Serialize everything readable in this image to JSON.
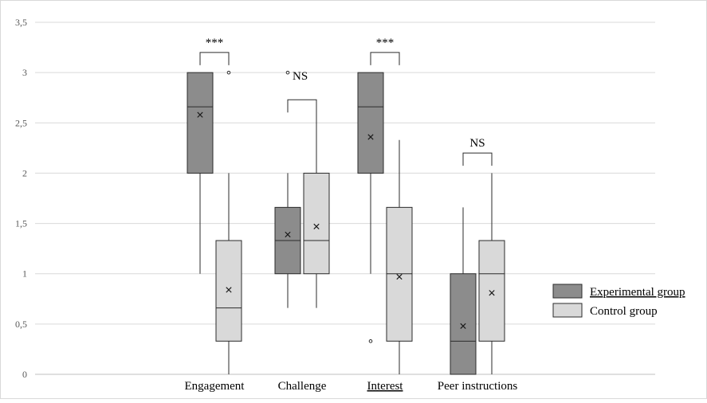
{
  "chart_data": {
    "type": "box",
    "ylim": [
      0,
      3.5
    ],
    "yticks": [
      "0",
      "0,5",
      "1",
      "1,5",
      "2",
      "2,5",
      "3",
      "3,5"
    ],
    "grid": true,
    "legend_position": "right",
    "categories": [
      "Engagement",
      "Challenge",
      "Interest",
      "Peer instructions"
    ],
    "series": [
      {
        "name": "Experimental group",
        "color": "#8c8c8c",
        "boxes": [
          {
            "min": 1.0,
            "q1": 2.0,
            "median": 2.66,
            "q3": 3.0,
            "max": 3.0,
            "mean": 2.58,
            "outliers": []
          },
          {
            "min": 0.66,
            "q1": 1.0,
            "median": 1.33,
            "q3": 1.66,
            "max": 2.0,
            "mean": 1.39,
            "outliers": [
              3.0
            ]
          },
          {
            "min": 1.0,
            "q1": 2.0,
            "median": 2.66,
            "q3": 3.0,
            "max": 3.0,
            "mean": 2.36,
            "outliers": [
              0.33
            ]
          },
          {
            "min": 0.0,
            "q1": 0.0,
            "median": 0.33,
            "q3": 1.0,
            "max": 1.66,
            "mean": 0.48,
            "outliers": []
          }
        ]
      },
      {
        "name": "Control group",
        "color": "#d9d9d9",
        "boxes": [
          {
            "min": 0.0,
            "q1": 0.33,
            "median": 0.66,
            "q3": 1.33,
            "max": 2.0,
            "mean": 0.84,
            "outliers": [
              3.0
            ]
          },
          {
            "min": 0.66,
            "q1": 1.0,
            "median": 1.33,
            "q3": 2.0,
            "max": 2.66,
            "mean": 1.47,
            "outliers": []
          },
          {
            "min": 0.0,
            "q1": 0.33,
            "median": 1.0,
            "q3": 1.66,
            "max": 2.33,
            "mean": 0.97,
            "outliers": []
          },
          {
            "min": 0.0,
            "q1": 0.33,
            "median": 1.0,
            "q3": 1.33,
            "max": 2.0,
            "mean": 0.81,
            "outliers": []
          }
        ]
      }
    ],
    "annotations": [
      {
        "category": 0,
        "text": "***",
        "y": 3.2
      },
      {
        "category": 1,
        "text": "NS",
        "y": 2.73
      },
      {
        "category": 2,
        "text": "***",
        "y": 3.2
      },
      {
        "category": 3,
        "text": "NS",
        "y": 2.2
      }
    ]
  }
}
